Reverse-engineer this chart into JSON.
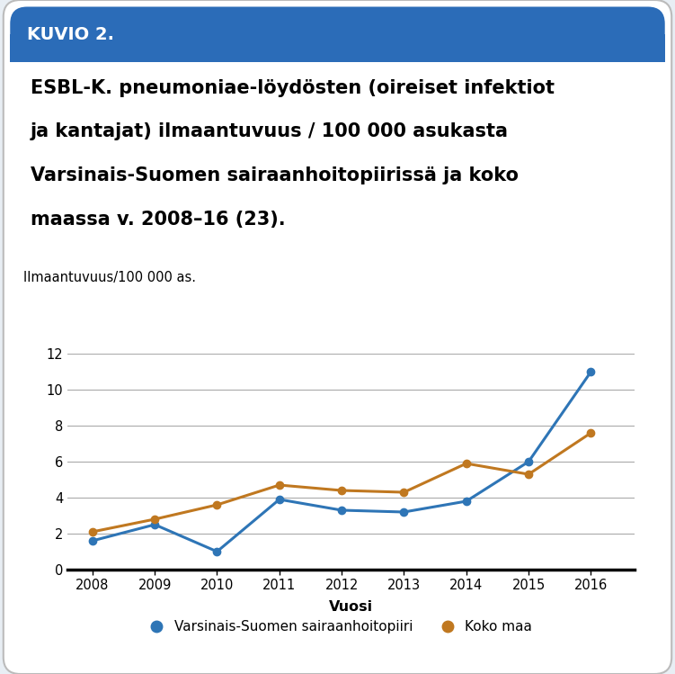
{
  "years": [
    2008,
    2009,
    2010,
    2011,
    2012,
    2013,
    2014,
    2015,
    2016
  ],
  "varsinais_suomi": [
    1.6,
    2.5,
    1.0,
    3.9,
    3.3,
    3.2,
    3.8,
    6.0,
    11.0
  ],
  "koko_maa": [
    2.1,
    2.8,
    3.6,
    4.7,
    4.4,
    4.3,
    5.9,
    5.3,
    7.6
  ],
  "varsinais_color": "#2E75B6",
  "koko_maa_color": "#C07820",
  "ylabel": "Ilmaantuvuus/100 000 as.",
  "xlabel": "Vuosi",
  "ylim": [
    0,
    12
  ],
  "yticks": [
    0,
    2,
    4,
    6,
    8,
    10,
    12
  ],
  "legend_label_1": "Varsinais-Suomen sairaanhoitopiiri",
  "legend_label_2": "Koko maa",
  "header_text": "KUVIO 2.",
  "title_line1": "ESBL-K. pneumoniae-löydösten (oireiset infektiot",
  "title_line2": "ja kantajat) ilmaantuvuus / 100 000 asukasta",
  "title_line3": "Varsinais-Suomen sairaanhoitopiirissä ja koko",
  "title_line4": "maassa v. 2008–16 (23).",
  "header_bg": "#2B6CB8",
  "header_text_color": "#FFFFFF",
  "body_bg": "#FFFFFF",
  "outer_bg": "#E8EEF4",
  "border_color": "#BBBBBB",
  "line_width": 2.2,
  "marker_size": 6,
  "grid_color": "#AAAAAA",
  "axis_label_fontsize": 10.5,
  "tick_fontsize": 10.5,
  "legend_fontsize": 11,
  "title_fontsize": 15,
  "header_fontsize": 14
}
